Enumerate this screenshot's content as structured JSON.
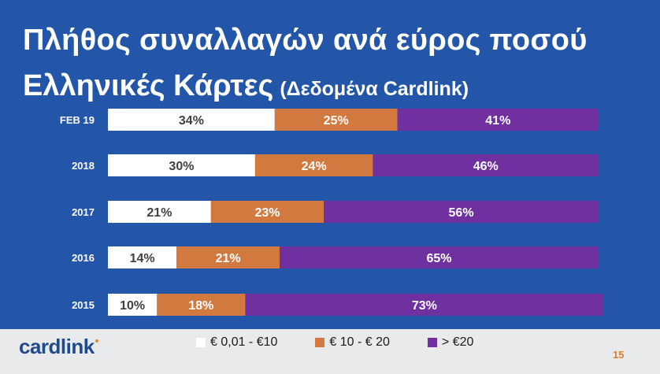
{
  "title": {
    "line1": "Πλήθος συναλλαγών ανά εύρος ποσού",
    "line2": "Ελληνικές Κάρτες",
    "subtitle": "(Δεδομένα Cardlink)"
  },
  "logo": "cardlink",
  "page_number": "15",
  "colors": {
    "background": "#2356a8",
    "small": "#ffffff",
    "medium": "#d2793f",
    "large": "#7030a0"
  },
  "chart_data": {
    "type": "bar",
    "orientation": "horizontal",
    "stacked": true,
    "categories": [
      "FEB 19",
      "2018",
      "2017",
      "2016",
      "2015"
    ],
    "series": [
      {
        "name": "€ 0,01 - €10",
        "values": [
          34,
          30,
          21,
          14,
          10
        ],
        "labels": [
          "34%",
          "30%",
          "21%",
          "14%",
          "10%"
        ],
        "color": "#ffffff",
        "label_color": "#404040"
      },
      {
        "name": "€ 10 - € 20",
        "values": [
          25,
          24,
          23,
          21,
          18
        ],
        "labels": [
          "25%",
          "24%",
          "23%",
          "21%",
          "18%"
        ],
        "color": "#d2793f",
        "label_color": "#ffffff"
      },
      {
        "name": "> €20",
        "values": [
          41,
          46,
          56,
          65,
          73
        ],
        "labels": [
          "41%",
          "46%",
          "56%",
          "65%",
          "73%"
        ],
        "color": "#7030a0",
        "label_color": "#ffffff"
      }
    ],
    "xlim": [
      0,
      100
    ],
    "legend_position": "bottom"
  }
}
